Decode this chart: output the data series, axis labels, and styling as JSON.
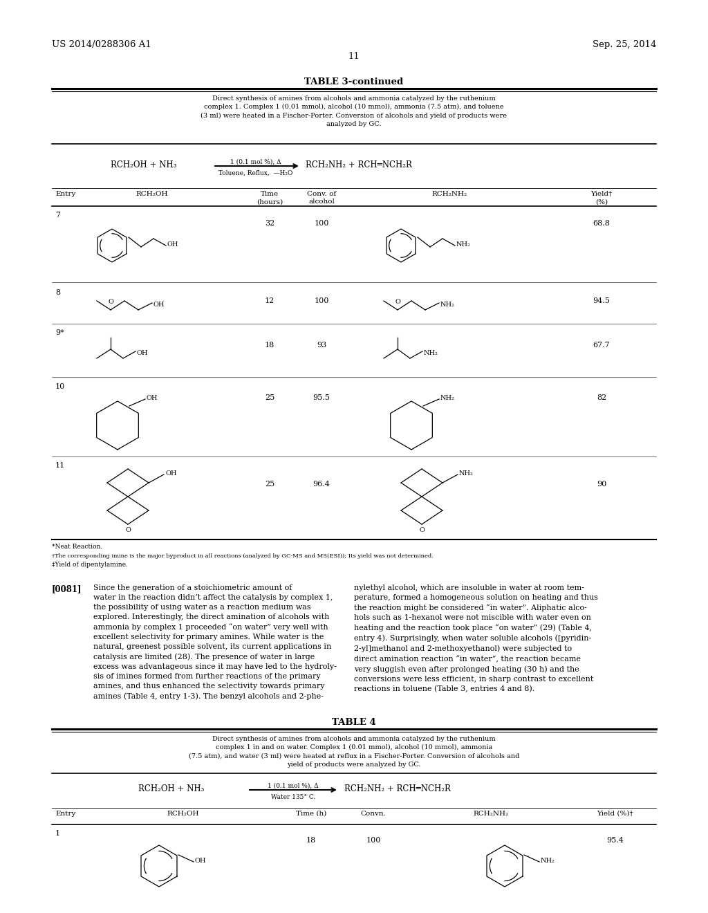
{
  "bg_color": "#ffffff",
  "page_width": 10.24,
  "page_height": 13.2,
  "dpi": 100,
  "header_left": "US 2014/0288306 A1",
  "header_right": "Sep. 25, 2014",
  "page_number": "11",
  "table3_title": "TABLE 3-continued",
  "table3_caption": "Direct synthesis of amines from alcohols and ammonia catalyzed by the ruthenium\ncomplex 1. Complex 1 (0.01 mmol), alcohol (10 mmol), ammonia (7.5 atm), and toluene\n(3 ml) were heated in a Fischer-Porter. Conversion of alcohols and yield of products were\nanalyzed by GC.",
  "footnotes": [
    "*Neat Reaction.",
    "†The corresponding imine is the major byproduct in all reactions (analyzed by GC-MS and MS(ESI)); Its yield was not determined.",
    "‡Yield of dipentylamine."
  ],
  "paragraph_number": "[0081]",
  "paragraph_left": "Since the generation of a stoichiometric amount of\nwater in the reaction didn’t affect the catalysis by complex 1,\nthe possibility of using water as a reaction medium was\nexplored. Interestingly, the direct amination of alcohols with\nammonia by complex 1 proceeded “on water” very well with\nexcellent selectivity for primary amines. While water is the\nnatural, greenest possible solvent, its current applications in\ncatalysis are limited (28). The presence of water in large\nexcess was advantageous since it may have led to the hydroly-\nsis of imines formed from further reactions of the primary\namines, and thus enhanced the selectivity towards primary\namines (Table 4, entry 1-3). The benzyl alcohols and 2-phe-",
  "paragraph_right": "nylethyl alcohol, which are insoluble in water at room tem-\nperature, formed a homogeneous solution on heating and thus\nthe reaction might be considered “in water”. Aliphatic alco-\nhols such as 1-hexanol were not miscible with water even on\nheating and the reaction took place “on water” (29) (Table 4,\nentry 4). Surprisingly, when water soluble alcohols ([pyridin-\n2-yl]methanol and 2-methoxyethanol) were subjected to\ndirect amination reaction “in water”, the reaction became\nvery sluggish even after prolonged heating (30 h) and the\nconversions were less efficient, in sharp contrast to excellent\nreactions in toluene (Table 3, entries 4 and 8).",
  "table4_title": "TABLE 4",
  "table4_caption": "Direct synthesis of amines from alcohols and ammonia catalyzed by the ruthenium\ncomplex 1 in and on water. Complex 1 (0.01 mmol), alcohol (10 mmol), ammonia\n(7.5 atm), and water (3 ml) were heated at reflux in a Fischer-Porter. Conversion of alcohols and\nyield of products were analyzed by GC."
}
